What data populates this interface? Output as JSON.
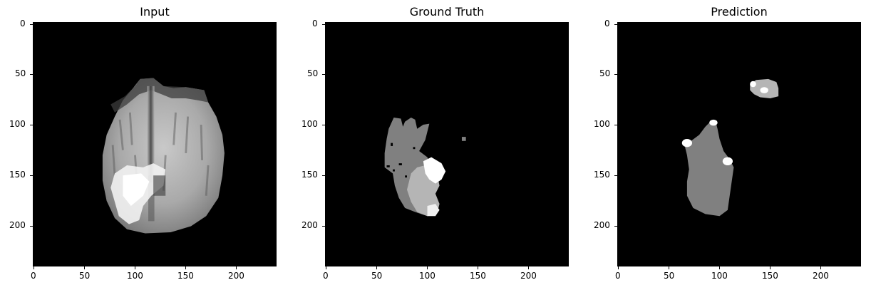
{
  "panels": [
    {
      "id": "input",
      "title": "Input",
      "x_ticks": [
        "0",
        "50",
        "100",
        "150",
        "200"
      ],
      "y_ticks": [
        "0",
        "50",
        "100",
        "150",
        "200"
      ]
    },
    {
      "id": "ground-truth",
      "title": "Ground Truth",
      "x_ticks": [
        "0",
        "50",
        "100",
        "150",
        "200"
      ],
      "y_ticks": [
        "0",
        "50",
        "100",
        "150",
        "200"
      ]
    },
    {
      "id": "prediction",
      "title": "Prediction",
      "x_ticks": [
        "0",
        "50",
        "100",
        "150",
        "200"
      ],
      "y_ticks": [
        "0",
        "50",
        "100",
        "150",
        "200"
      ]
    }
  ],
  "tick_values": [
    0,
    50,
    100,
    150,
    200
  ],
  "axis_extent": [
    0,
    240
  ],
  "colors": {
    "background": "#000000",
    "label_low": "#808080",
    "label_mid": "#b5b5b5",
    "label_high": "#ffffff"
  }
}
